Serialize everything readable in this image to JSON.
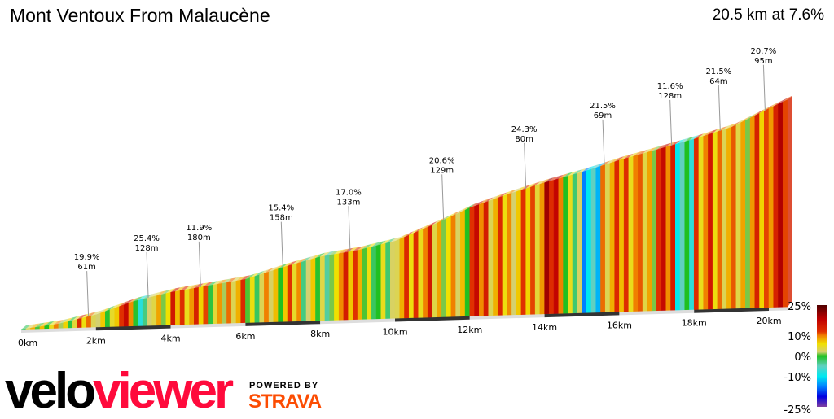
{
  "header": {
    "title": "Mont Ventoux From Malaucène",
    "summary": "20.5 km at 7.6%"
  },
  "branding": {
    "logo_part1": "velo",
    "logo_part2": "viewer",
    "powered_by": "POWERED BY",
    "partner": "STRAVA"
  },
  "chart_data": {
    "type": "area",
    "title": "Mont Ventoux From Malaucène",
    "xlabel": "",
    "ylabel": "",
    "xlim": [
      0,
      20.5
    ],
    "x_ticks": [
      "0km",
      "2km",
      "4km",
      "6km",
      "8km",
      "10km",
      "12km",
      "14km",
      "16km",
      "18km",
      "20km"
    ],
    "profile": {
      "distance_km": [
        0,
        1,
        2,
        3,
        4,
        5,
        6,
        7,
        8,
        9,
        10,
        11,
        12,
        13,
        14,
        15,
        16,
        17,
        18,
        19,
        20,
        20.5
      ],
      "elevation_m": [
        377,
        410,
        470,
        560,
        620,
        660,
        700,
        780,
        850,
        890,
        950,
        1060,
        1180,
        1270,
        1350,
        1420,
        1500,
        1570,
        1640,
        1720,
        1850,
        1912
      ]
    },
    "segment_gradient_pct": [
      3,
      5,
      4,
      8,
      2,
      12,
      -3,
      6,
      10,
      9,
      4,
      8,
      3,
      5,
      7,
      2,
      1,
      12,
      3,
      0,
      8,
      10,
      6,
      5,
      12,
      8,
      7,
      9,
      15,
      0,
      -10,
      8,
      10,
      6,
      12,
      -5,
      10,
      8,
      6,
      9,
      14
    ],
    "segment_length_km": 0.5,
    "annotations": [
      {
        "km": 1.8,
        "gradient": "19.9%",
        "length": "61m"
      },
      {
        "km": 3.4,
        "gradient": "25.4%",
        "length": "128m"
      },
      {
        "km": 4.8,
        "gradient": "11.9%",
        "length": "180m"
      },
      {
        "km": 7.0,
        "gradient": "15.4%",
        "length": "158m"
      },
      {
        "km": 8.8,
        "gradient": "17.0%",
        "length": "133m"
      },
      {
        "km": 11.3,
        "gradient": "20.6%",
        "length": "129m"
      },
      {
        "km": 13.5,
        "gradient": "24.3%",
        "length": "80m"
      },
      {
        "km": 15.6,
        "gradient": "21.5%",
        "length": "69m"
      },
      {
        "km": 17.4,
        "gradient": "11.6%",
        "length": "128m"
      },
      {
        "km": 18.7,
        "gradient": "21.5%",
        "length": "64m"
      },
      {
        "km": 19.9,
        "gradient": "20.7%",
        "length": "95m"
      }
    ],
    "legend": {
      "placement": "bottom-right",
      "labels": [
        "25%",
        "10%",
        "0%",
        "-10%",
        "-25%"
      ],
      "colormap": [
        {
          "pct": 25,
          "color": "#500000"
        },
        {
          "pct": 18,
          "color": "#c00000"
        },
        {
          "pct": 12,
          "color": "#e03000"
        },
        {
          "pct": 10,
          "color": "#f08000"
        },
        {
          "pct": 6,
          "color": "#f0e000"
        },
        {
          "pct": 2,
          "color": "#d4d070"
        },
        {
          "pct": 0,
          "color": "#20c020"
        },
        {
          "pct": -5,
          "color": "#60d0c0"
        },
        {
          "pct": -10,
          "color": "#00e8f0"
        },
        {
          "pct": -15,
          "color": "#0080ff"
        },
        {
          "pct": -20,
          "color": "#0000e0"
        },
        {
          "pct": -25,
          "color": "#8040a0"
        }
      ]
    }
  }
}
